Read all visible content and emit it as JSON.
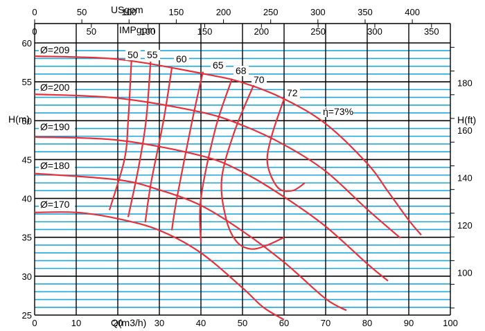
{
  "chart_data": {
    "type": "line",
    "title": "",
    "xlabel": "Q(m3/h)",
    "ylabel": "H(m)",
    "y2label": "H(ft)",
    "top_axis_1_label": "USgpm",
    "top_axis_2_label": "IMPgpm",
    "xlim": [
      0,
      100
    ],
    "ylim": [
      25,
      60
    ],
    "x_ticks": [
      0,
      10,
      20,
      30,
      40,
      50,
      60,
      70,
      80,
      90,
      100
    ],
    "x_tick_labels": [
      "0",
      "10",
      "20",
      "30",
      "40",
      "50",
      "60",
      "70",
      "80",
      "90",
      "100"
    ],
    "y_ticks": [
      25,
      30,
      35,
      40,
      45,
      50,
      55,
      60
    ],
    "y_tick_labels": [
      "25",
      "30",
      "35",
      "40",
      "45",
      "50",
      "55",
      "60"
    ],
    "usgpm_ticks": [
      0,
      50,
      100,
      150,
      200,
      250,
      300,
      350,
      400
    ],
    "usgpm_tick_labels": [
      "0",
      "50",
      "100",
      "150",
      "200",
      "250",
      "300",
      "350",
      "400"
    ],
    "impgpm_ticks": [
      0,
      50,
      100,
      150,
      200,
      250,
      300,
      350
    ],
    "impgpm_tick_labels": [
      "0",
      "50",
      "100",
      "150",
      "200",
      "250",
      "300",
      "350"
    ],
    "hft_ticks": [
      100,
      120,
      140,
      160,
      180
    ],
    "hft_tick_labels": [
      "100",
      "120",
      "140",
      "160",
      "180"
    ],
    "grid": true,
    "colors": {
      "curve": "#e8303a",
      "hgrid": "#1ea8e0",
      "vgrid": "#000000"
    },
    "impeller_curves": [
      {
        "label": "Ø=209",
        "points": [
          [
            0,
            58.3
          ],
          [
            20,
            57.9
          ],
          [
            40,
            56.1
          ],
          [
            50,
            54.9
          ],
          [
            60,
            52.8
          ],
          [
            70,
            49.6
          ],
          [
            80,
            44.5
          ],
          [
            85,
            40.9
          ],
          [
            90,
            37.2
          ],
          [
            93,
            35.3
          ]
        ]
      },
      {
        "label": "Ø=200",
        "points": [
          [
            0,
            53.4
          ],
          [
            20,
            52.9
          ],
          [
            40,
            51.1
          ],
          [
            50,
            49.4
          ],
          [
            60,
            46.9
          ],
          [
            70,
            43.5
          ],
          [
            80,
            38.6
          ],
          [
            88,
            34.9
          ]
        ]
      },
      {
        "label": "Ø=190",
        "points": [
          [
            0,
            47.9
          ],
          [
            20,
            47.5
          ],
          [
            40,
            45.5
          ],
          [
            50,
            43.4
          ],
          [
            60,
            40.2
          ],
          [
            70,
            36.4
          ],
          [
            80,
            31.6
          ],
          [
            85,
            29.4
          ]
        ]
      },
      {
        "label": "Ø=180",
        "points": [
          [
            0,
            43.2
          ],
          [
            20,
            42.4
          ],
          [
            30,
            41.1
          ],
          [
            40,
            39.1
          ],
          [
            50,
            35.8
          ],
          [
            60,
            31.8
          ],
          [
            70,
            27.1
          ],
          [
            75,
            25.6
          ]
        ]
      },
      {
        "label": "Ø=170",
        "points": [
          [
            0,
            38.2
          ],
          [
            10,
            38.2
          ],
          [
            20,
            37.4
          ],
          [
            30,
            35.9
          ],
          [
            40,
            33.0
          ],
          [
            50,
            28.5
          ],
          [
            55,
            26.0
          ],
          [
            60,
            24.4
          ]
        ]
      }
    ],
    "efficiency_curves": [
      {
        "label": "50",
        "points": [
          [
            23.3,
            57.9
          ],
          [
            22.5,
            50.0
          ],
          [
            21.6,
            45.0
          ],
          [
            18.0,
            38.5
          ]
        ]
      },
      {
        "label": "55",
        "points": [
          [
            27.9,
            57.6
          ],
          [
            26.8,
            50.0
          ],
          [
            25.0,
            44.0
          ],
          [
            22.5,
            37.6
          ]
        ]
      },
      {
        "label": "60",
        "points": [
          [
            33.0,
            56.8
          ],
          [
            31.0,
            50.0
          ],
          [
            28.0,
            42.0
          ],
          [
            26.6,
            36.9
          ]
        ]
      },
      {
        "label": "65",
        "points": [
          [
            40.5,
            56.3
          ],
          [
            37.9,
            50.0
          ],
          [
            34.2,
            40.0
          ],
          [
            33.0,
            35.9
          ]
        ]
      },
      {
        "label": "68",
        "points": [
          [
            47.5,
            55.4
          ],
          [
            43.5,
            49.0
          ],
          [
            40.0,
            40.0
          ],
          [
            40.0,
            34.3
          ]
        ]
      },
      {
        "label": "70",
        "points": [
          [
            52.7,
            54.6
          ],
          [
            48.0,
            48.5
          ],
          [
            45.0,
            42.5
          ],
          [
            46.0,
            37.5
          ],
          [
            48.5,
            34.5
          ],
          [
            52.0,
            33.5
          ],
          [
            56.0,
            34.0
          ],
          [
            60.0,
            35.0
          ]
        ]
      },
      {
        "label": "72",
        "points": [
          [
            60.0,
            52.8
          ],
          [
            57.0,
            48.0
          ],
          [
            56.0,
            44.5
          ],
          [
            58.5,
            41.4
          ],
          [
            62.0,
            41.0
          ],
          [
            65.0,
            42.0
          ]
        ]
      }
    ],
    "efficiency_curve_labels": [
      "50",
      "55",
      "60",
      "65",
      "68",
      "70",
      "72",
      "ή=73%"
    ]
  }
}
